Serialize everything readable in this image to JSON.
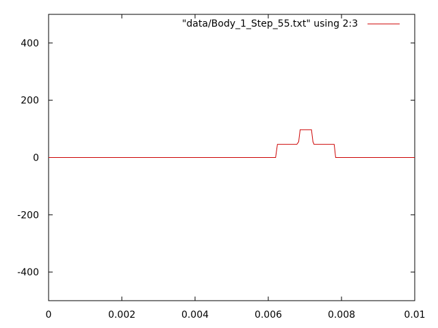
{
  "chart_data": {
    "type": "line",
    "title": "",
    "xlabel": "",
    "ylabel": "",
    "xlim": [
      0,
      0.01
    ],
    "ylim": [
      -500,
      500
    ],
    "xticks": [
      "0",
      "0.002",
      "0.004",
      "0.006",
      "0.008",
      "0.01"
    ],
    "xtick_values": [
      0,
      0.002,
      0.004,
      0.006,
      0.008,
      0.01
    ],
    "yticks": [
      "-400",
      "-200",
      "0",
      "200",
      "400"
    ],
    "ytick_values": [
      -400,
      -200,
      0,
      200,
      400
    ],
    "grid": false,
    "legend_position": "top-right",
    "series": [
      {
        "name": "\"data/Body_1_Step_55.txt\" using 2:3",
        "color": "#cc0000",
        "x": [
          0,
          0.0062,
          0.00625,
          0.00678,
          0.00683,
          0.00687,
          0.00718,
          0.00722,
          0.00725,
          0.0078,
          0.00784,
          0.01
        ],
        "y": [
          0,
          0,
          46,
          46,
          55,
          97,
          97,
          55,
          46,
          46,
          0,
          0
        ]
      }
    ]
  }
}
